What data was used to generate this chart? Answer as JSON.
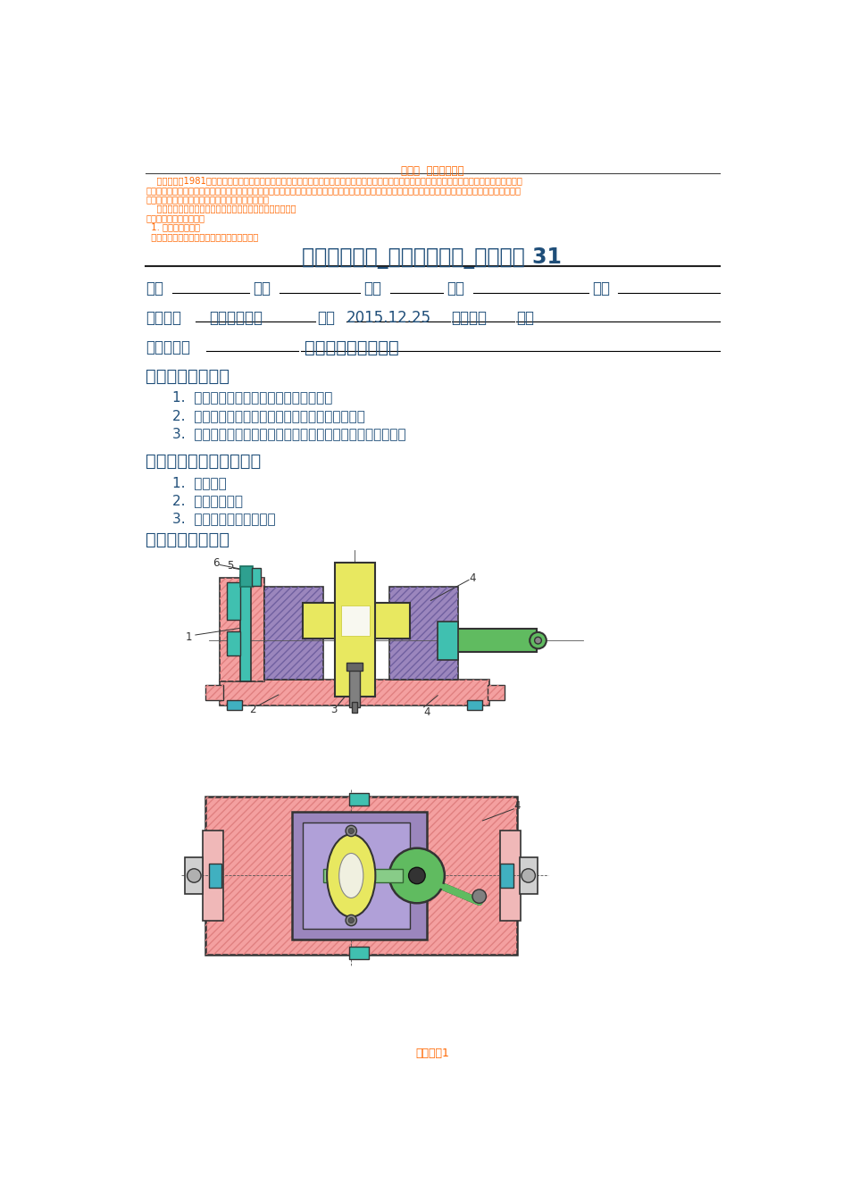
{
  "page_bg": "#ffffff",
  "header_orange_title": "案例一  目标管理案例",
  "header_orange_text_lines": [
    "    某机床厂从1981年开始推行目标管理，为了充分发挥各职能部门的作用，充分调动一千多名职能科门人员的积极性，该厂首先对厂部和监视设了目标管",
    "理，通过一段时间的试点总结，逐步推广到全厂各车间、工段和班组，多年的实践表明，目标管理改变了企业经营管理，挖掘了企业内部潜力，增强了企业的应",
    "变能力，提高了企业效益，取得了较好的综合劝效。",
    "    该项目标管理的意图，该厂是目标管理分为三个阶段进行：",
    "第一阶段：目标制订阶段",
    "  1. 主目标的制订：",
    "  该厂通过对需内外市场机床需销售的调查，组"
  ],
  "main_title": "荆楚理工学院_机械工程学院_实验报告 31",
  "section1_title": "一、【目的要求】",
  "section1_items": [
    "1.  掌握夹具的组成、结构及各部分的作用",
    "2.  理解夹具各部分连接方法，了解夹具的装配过程",
    "3.  掌握夹具与机床连接、定位方法，了解加工前的对刀方法。"
  ],
  "section2_title": "二、【实验仪器与试剂】",
  "section2_items": [
    "1.  铣床一台",
    "2.  铣床夹具一套",
    "3.  拆装、调整工具各一套"
  ],
  "section3_title": "三、【实验原理】",
  "footer_text": "页脚方案1",
  "text_color_blue": "#1F4E79",
  "text_color_orange": "#FF6600",
  "pink": "#F4A0A0",
  "pink_dark": "#E08080",
  "purple": "#9B86BD",
  "yellow": "#E8E860",
  "teal": "#40C0B0",
  "teal_dark": "#2E8B7A",
  "green": "#60BB60",
  "gray": "#888888",
  "cyan_blue": "#40B0C0",
  "black": "#333333"
}
